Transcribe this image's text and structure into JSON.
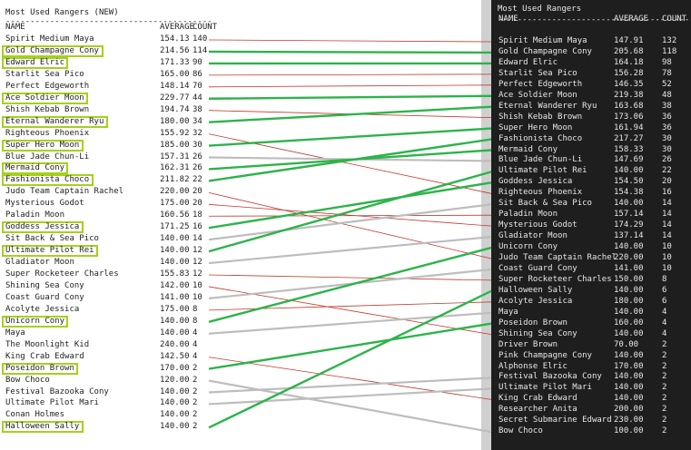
{
  "left_panel": {
    "title": "Most Used Rangers (NEW)",
    "rule": "------------------------------------------",
    "headers": {
      "name": "NAME",
      "average": "AVERAGE",
      "count": "COUNT"
    },
    "rows": [
      {
        "name": "Spirit Medium Maya",
        "average": "154.13",
        "count": "140",
        "highlight": false
      },
      {
        "name": "Gold Champagne Cony",
        "average": "214.56",
        "count": "114",
        "highlight": true
      },
      {
        "name": "Edward Elric",
        "average": "171.33",
        "count": "90",
        "highlight": true
      },
      {
        "name": "Starlit Sea Pico",
        "average": "165.00",
        "count": "86",
        "highlight": false
      },
      {
        "name": "Perfect Edgeworth",
        "average": "148.14",
        "count": "70",
        "highlight": false
      },
      {
        "name": "Ace Soldier Moon",
        "average": "229.77",
        "count": "44",
        "highlight": true
      },
      {
        "name": "Shish Kebab Brown",
        "average": "194.74",
        "count": "38",
        "highlight": false
      },
      {
        "name": "Eternal Wanderer Ryu",
        "average": "180.00",
        "count": "34",
        "highlight": true
      },
      {
        "name": "Righteous Phoenix",
        "average": "155.92",
        "count": "32",
        "highlight": false
      },
      {
        "name": "Super Hero Moon",
        "average": "185.00",
        "count": "30",
        "highlight": true
      },
      {
        "name": "Blue Jade Chun-Li",
        "average": "157.31",
        "count": "26",
        "highlight": false
      },
      {
        "name": "Mermaid Cony",
        "average": "162.31",
        "count": "26",
        "highlight": true
      },
      {
        "name": "Fashionista Choco",
        "average": "211.82",
        "count": "22",
        "highlight": true
      },
      {
        "name": "Judo Team Captain Rachel",
        "average": "220.00",
        "count": "20",
        "highlight": false
      },
      {
        "name": "Mysterious Godot",
        "average": "175.00",
        "count": "20",
        "highlight": false
      },
      {
        "name": "Paladin Moon",
        "average": "160.56",
        "count": "18",
        "highlight": false
      },
      {
        "name": "Goddess Jessica",
        "average": "171.25",
        "count": "16",
        "highlight": true
      },
      {
        "name": "Sit Back & Sea Pico",
        "average": "140.00",
        "count": "14",
        "highlight": false
      },
      {
        "name": "Ultimate Pilot Rei",
        "average": "140.00",
        "count": "12",
        "highlight": true
      },
      {
        "name": "Gladiator Moon",
        "average": "140.00",
        "count": "12",
        "highlight": false
      },
      {
        "name": "Super Rocketeer Charles",
        "average": "155.83",
        "count": "12",
        "highlight": false
      },
      {
        "name": "Shining Sea Cony",
        "average": "142.00",
        "count": "10",
        "highlight": false
      },
      {
        "name": "Coast Guard Cony",
        "average": "141.00",
        "count": "10",
        "highlight": false
      },
      {
        "name": "Acolyte Jessica",
        "average": "175.00",
        "count": "8",
        "highlight": false
      },
      {
        "name": "Unicorn Cony",
        "average": "140.00",
        "count": "8",
        "highlight": true
      },
      {
        "name": "Maya",
        "average": "140.00",
        "count": "4",
        "highlight": false
      },
      {
        "name": "The Moonlight Kid",
        "average": "240.00",
        "count": "4",
        "highlight": false
      },
      {
        "name": "King Crab Edward",
        "average": "142.50",
        "count": "4",
        "highlight": false
      },
      {
        "name": "Poseidon Brown",
        "average": "170.00",
        "count": "2",
        "highlight": true
      },
      {
        "name": "Bow Choco",
        "average": "120.00",
        "count": "2",
        "highlight": false
      },
      {
        "name": "Festival Bazooka Cony",
        "average": "140.00",
        "count": "2",
        "highlight": false
      },
      {
        "name": "Ultimate Pilot Mari",
        "average": "140.00",
        "count": "2",
        "highlight": false
      },
      {
        "name": "Conan Holmes",
        "average": "140.00",
        "count": "2",
        "highlight": false
      },
      {
        "name": "Halloween Sally",
        "average": "140.00",
        "count": "2",
        "highlight": true
      }
    ]
  },
  "right_panel": {
    "title": "Most Used Rangers",
    "rule": "------------------------------------------",
    "headers": {
      "name": "NAME",
      "average": "AVERAGE",
      "count": "COUNT"
    },
    "rows": [
      {
        "name": "Spirit Medium Maya",
        "average": "147.91",
        "count": "132"
      },
      {
        "name": "Gold Champagne Cony",
        "average": "205.68",
        "count": "118"
      },
      {
        "name": "Edward Elric",
        "average": "164.18",
        "count": "98"
      },
      {
        "name": "Starlit Sea Pico",
        "average": "156.28",
        "count": "78"
      },
      {
        "name": "Perfect Edgeworth",
        "average": "146.35",
        "count": "52"
      },
      {
        "name": "Ace Soldier Moon",
        "average": "219.38",
        "count": "48"
      },
      {
        "name": "Eternal Wanderer Ryu",
        "average": "163.68",
        "count": "38"
      },
      {
        "name": "Shish Kebab Brown",
        "average": "173.06",
        "count": "36"
      },
      {
        "name": "Super Hero Moon",
        "average": "161.94",
        "count": "36"
      },
      {
        "name": "Fashionista Choco",
        "average": "217.27",
        "count": "30"
      },
      {
        "name": "Mermaid Cony",
        "average": "158.33",
        "count": "30"
      },
      {
        "name": "Blue Jade Chun-Li",
        "average": "147.69",
        "count": "26"
      },
      {
        "name": "Ultimate Pilot Rei",
        "average": "140.00",
        "count": "22"
      },
      {
        "name": "Goddess Jessica",
        "average": "154.50",
        "count": "20"
      },
      {
        "name": "Righteous Phoenix",
        "average": "154.38",
        "count": "16"
      },
      {
        "name": "Sit Back & Sea Pico",
        "average": "140.00",
        "count": "14"
      },
      {
        "name": "Paladin Moon",
        "average": "157.14",
        "count": "14"
      },
      {
        "name": "Mysterious Godot",
        "average": "174.29",
        "count": "14"
      },
      {
        "name": "Gladiator Moon",
        "average": "137.14",
        "count": "14"
      },
      {
        "name": "Unicorn Cony",
        "average": "140.00",
        "count": "10"
      },
      {
        "name": "Judo Team Captain Rachel",
        "average": "220.00",
        "count": "10"
      },
      {
        "name": "Coast Guard Cony",
        "average": "141.00",
        "count": "10"
      },
      {
        "name": "Super Rocketeer Charles",
        "average": "150.00",
        "count": "8"
      },
      {
        "name": "Halloween Sally",
        "average": "140.00",
        "count": "6"
      },
      {
        "name": "Acolyte Jessica",
        "average": "180.00",
        "count": "6"
      },
      {
        "name": "Maya",
        "average": "140.00",
        "count": "4"
      },
      {
        "name": "Poseidon Brown",
        "average": "160.00",
        "count": "4"
      },
      {
        "name": "Shining Sea Cony",
        "average": "140.00",
        "count": "4"
      },
      {
        "name": "Driver Brown",
        "average": "70.00",
        "count": "2"
      },
      {
        "name": "Pink Champagne Cony",
        "average": "140.00",
        "count": "2"
      },
      {
        "name": "Alphonse Elric",
        "average": "170.00",
        "count": "2"
      },
      {
        "name": "Festival Bazooka Cony",
        "average": "140.00",
        "count": "2"
      },
      {
        "name": "Ultimate Pilot Mari",
        "average": "140.00",
        "count": "2"
      },
      {
        "name": "King Crab Edward",
        "average": "140.00",
        "count": "2"
      },
      {
        "name": "Researcher Anita",
        "average": "200.00",
        "count": "2"
      },
      {
        "name": "Secret Submarine Edward",
        "average": "230.00",
        "count": "2"
      },
      {
        "name": "Bow Choco",
        "average": "100.00",
        "count": "2"
      }
    ]
  },
  "colors": {
    "highlight": "#a4d11a",
    "up": "#2db34a",
    "down": "#c0392b",
    "neutral": "#bdbdbd"
  },
  "connections": [
    {
      "from": 0,
      "to": 0,
      "kind": "down"
    },
    {
      "from": 1,
      "to": 1,
      "kind": "up"
    },
    {
      "from": 2,
      "to": 2,
      "kind": "up"
    },
    {
      "from": 3,
      "to": 3,
      "kind": "down"
    },
    {
      "from": 4,
      "to": 4,
      "kind": "down"
    },
    {
      "from": 5,
      "to": 5,
      "kind": "up"
    },
    {
      "from": 6,
      "to": 7,
      "kind": "down"
    },
    {
      "from": 7,
      "to": 6,
      "kind": "up"
    },
    {
      "from": 8,
      "to": 14,
      "kind": "down"
    },
    {
      "from": 9,
      "to": 8,
      "kind": "up"
    },
    {
      "from": 10,
      "to": 11,
      "kind": "neutral"
    },
    {
      "from": 11,
      "to": 10,
      "kind": "up"
    },
    {
      "from": 12,
      "to": 9,
      "kind": "up"
    },
    {
      "from": 13,
      "to": 20,
      "kind": "down"
    },
    {
      "from": 14,
      "to": 17,
      "kind": "down"
    },
    {
      "from": 15,
      "to": 16,
      "kind": "down"
    },
    {
      "from": 16,
      "to": 13,
      "kind": "up"
    },
    {
      "from": 17,
      "to": 15,
      "kind": "neutral"
    },
    {
      "from": 18,
      "to": 12,
      "kind": "up"
    },
    {
      "from": 19,
      "to": 18,
      "kind": "neutral"
    },
    {
      "from": 20,
      "to": 22,
      "kind": "down"
    },
    {
      "from": 21,
      "to": 27,
      "kind": "down"
    },
    {
      "from": 22,
      "to": 21,
      "kind": "neutral"
    },
    {
      "from": 23,
      "to": 24,
      "kind": "down"
    },
    {
      "from": 24,
      "to": 19,
      "kind": "up"
    },
    {
      "from": 25,
      "to": 25,
      "kind": "neutral"
    },
    {
      "from": 27,
      "to": 33,
      "kind": "down"
    },
    {
      "from": 28,
      "to": 26,
      "kind": "up"
    },
    {
      "from": 29,
      "to": 36,
      "kind": "neutral"
    },
    {
      "from": 30,
      "to": 31,
      "kind": "neutral"
    },
    {
      "from": 31,
      "to": 32,
      "kind": "neutral"
    },
    {
      "from": 33,
      "to": 23,
      "kind": "up"
    }
  ]
}
